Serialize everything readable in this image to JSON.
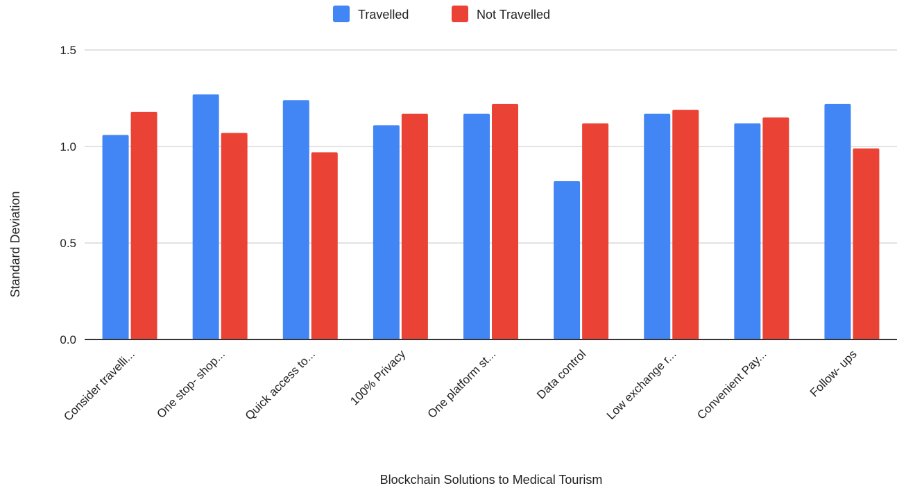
{
  "chart_data": {
    "type": "bar",
    "title": "",
    "xlabel": "Blockchain Solutions to Medical Tourism",
    "ylabel": "Standard Deviation",
    "ylim": [
      0,
      1.5
    ],
    "yticks": [
      "0.0",
      "0.5",
      "1.0",
      "1.5"
    ],
    "grid": true,
    "legend_position": "top",
    "categories": [
      "Consider travelli...",
      "One stop- shop...",
      "Quick access to...",
      "100% Privacy",
      "One platform st...",
      "Data control",
      "Low exchange r...",
      "Convenient Pay...",
      "Follow- ups"
    ],
    "series": [
      {
        "name": "Travelled",
        "color": "#4285f4",
        "values": [
          1.06,
          1.27,
          1.24,
          1.11,
          1.17,
          0.82,
          1.17,
          1.12,
          1.22
        ]
      },
      {
        "name": "Not Travelled",
        "color": "#ea4335",
        "values": [
          1.18,
          1.07,
          0.97,
          1.17,
          1.22,
          1.12,
          1.19,
          1.15,
          0.99
        ]
      }
    ]
  }
}
